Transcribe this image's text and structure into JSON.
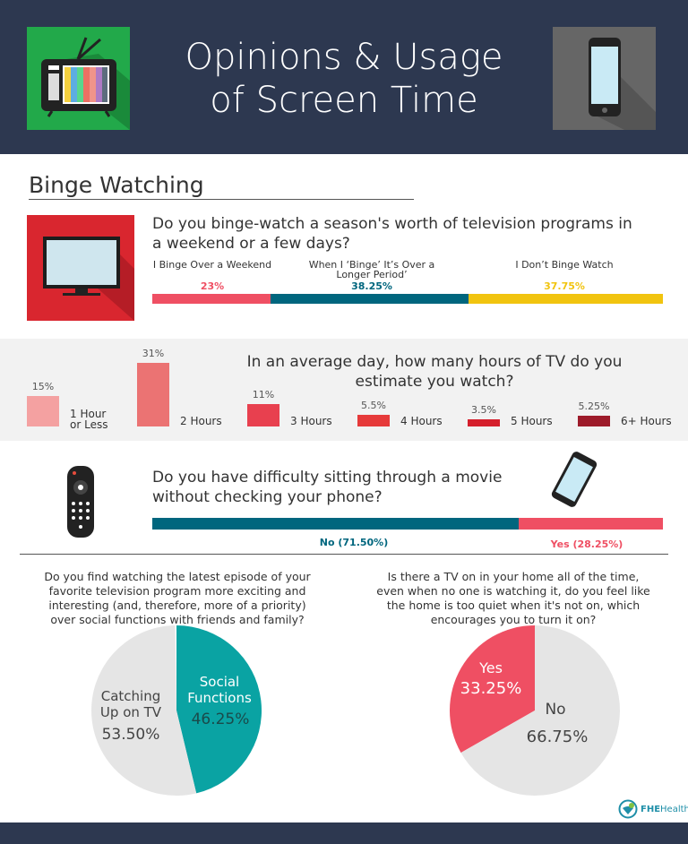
{
  "header": {
    "title_line1": "Opinions & Usage",
    "title_line2": "of Screen Time"
  },
  "section_title": "Binge Watching",
  "colors": {
    "navy": "#2d3850",
    "pink": "#ef4f63",
    "teal": "#00667e",
    "yellow": "#f1c40f",
    "pie_teal": "#0aa3a3",
    "pie_gray": "#e5e5e5"
  },
  "icons": [
    "tv-retro-icon",
    "smartphone-icon",
    "flat-tv-icon",
    "remote-control-icon",
    "smartphone-icon"
  ],
  "logo": {
    "text": "FHEHealth"
  },
  "chart_data": [
    {
      "type": "bar",
      "orientation": "stacked-horizontal",
      "title": "Do you binge-watch a season's worth of television programs in a weekend or a few days?",
      "categories": [
        "I Binge Over a Weekend",
        "When I ‘Binge’ It’s Over a Longer Period’",
        "I Don’t Binge Watch"
      ],
      "values": [
        23,
        38.25,
        37.75
      ],
      "labels": [
        "23%",
        "38.25%",
        "37.75%"
      ],
      "colors": [
        "#ef4f63",
        "#00667e",
        "#f1c40f"
      ]
    },
    {
      "type": "bar",
      "title": "In an average day, how many hours of TV do you estimate you watch?",
      "categories": [
        "1 Hour or Less",
        "2 Hours",
        "3 Hours",
        "4 Hours",
        "5 Hours",
        "6+ Hours"
      ],
      "values": [
        15,
        31,
        11,
        5.5,
        3.5,
        5.25
      ],
      "labels": [
        "15%",
        "31%",
        "11%",
        "5.5%",
        "3.5%",
        "5.25%"
      ],
      "colors": [
        "#f4a1a1",
        "#eb7373",
        "#e8404f",
        "#e63a3a",
        "#d51f2c",
        "#9d1b2a"
      ]
    },
    {
      "type": "bar",
      "orientation": "stacked-horizontal",
      "title": "Do you have difficulty sitting through a movie without checking your phone?",
      "categories": [
        "No",
        "Yes"
      ],
      "values": [
        71.5,
        28.25
      ],
      "labels": [
        "No (71.50%)",
        "Yes (28.25%)"
      ],
      "colors": [
        "#00667e",
        "#ef4f63"
      ]
    },
    {
      "type": "pie",
      "title": "Do you find watching the latest episode of your favorite television program more exciting and interesting (and, therefore, more of a priority) over social functions with friends and family?",
      "slices": [
        {
          "label": "Social Functions",
          "value": 46.25,
          "text": "46.25%",
          "color": "#0aa3a3"
        },
        {
          "label": "Catching Up on TV",
          "value": 53.5,
          "text": "53.50%",
          "color": "#e5e5e5"
        }
      ]
    },
    {
      "type": "pie",
      "title": "Is there a TV on in your home all of the time, even when no one is watching it, do you feel like the home is too quiet when it's not on, which encourages you to turn it on?",
      "slices": [
        {
          "label": "Yes",
          "value": 33.25,
          "text": "33.25%",
          "color": "#ef4f63"
        },
        {
          "label": "No",
          "value": 66.75,
          "text": "66.75%",
          "color": "#e5e5e5"
        }
      ]
    }
  ]
}
